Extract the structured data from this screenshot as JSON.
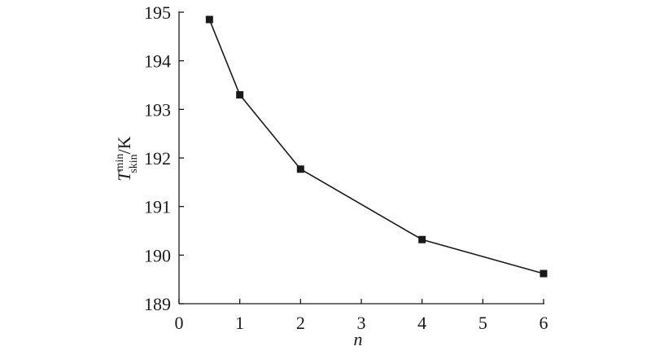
{
  "chart_data": {
    "type": "line",
    "x": [
      0.5,
      1,
      2,
      4,
      6
    ],
    "series": [
      {
        "values": [
          194.85,
          193.3,
          191.77,
          190.32,
          189.62
        ],
        "color": "#1a1a1a"
      }
    ],
    "xlim": [
      0,
      6
    ],
    "xticks": [
      0,
      1,
      2,
      3,
      4,
      5,
      6
    ],
    "ylim": [
      189,
      195
    ],
    "yticks": [
      189,
      190,
      191,
      192,
      193,
      194,
      195
    ],
    "xlabel": "n",
    "ylabel": {
      "symbol": "T",
      "superscript": "min",
      "subscript": "skin",
      "unit": "/K"
    },
    "marker": "square"
  }
}
